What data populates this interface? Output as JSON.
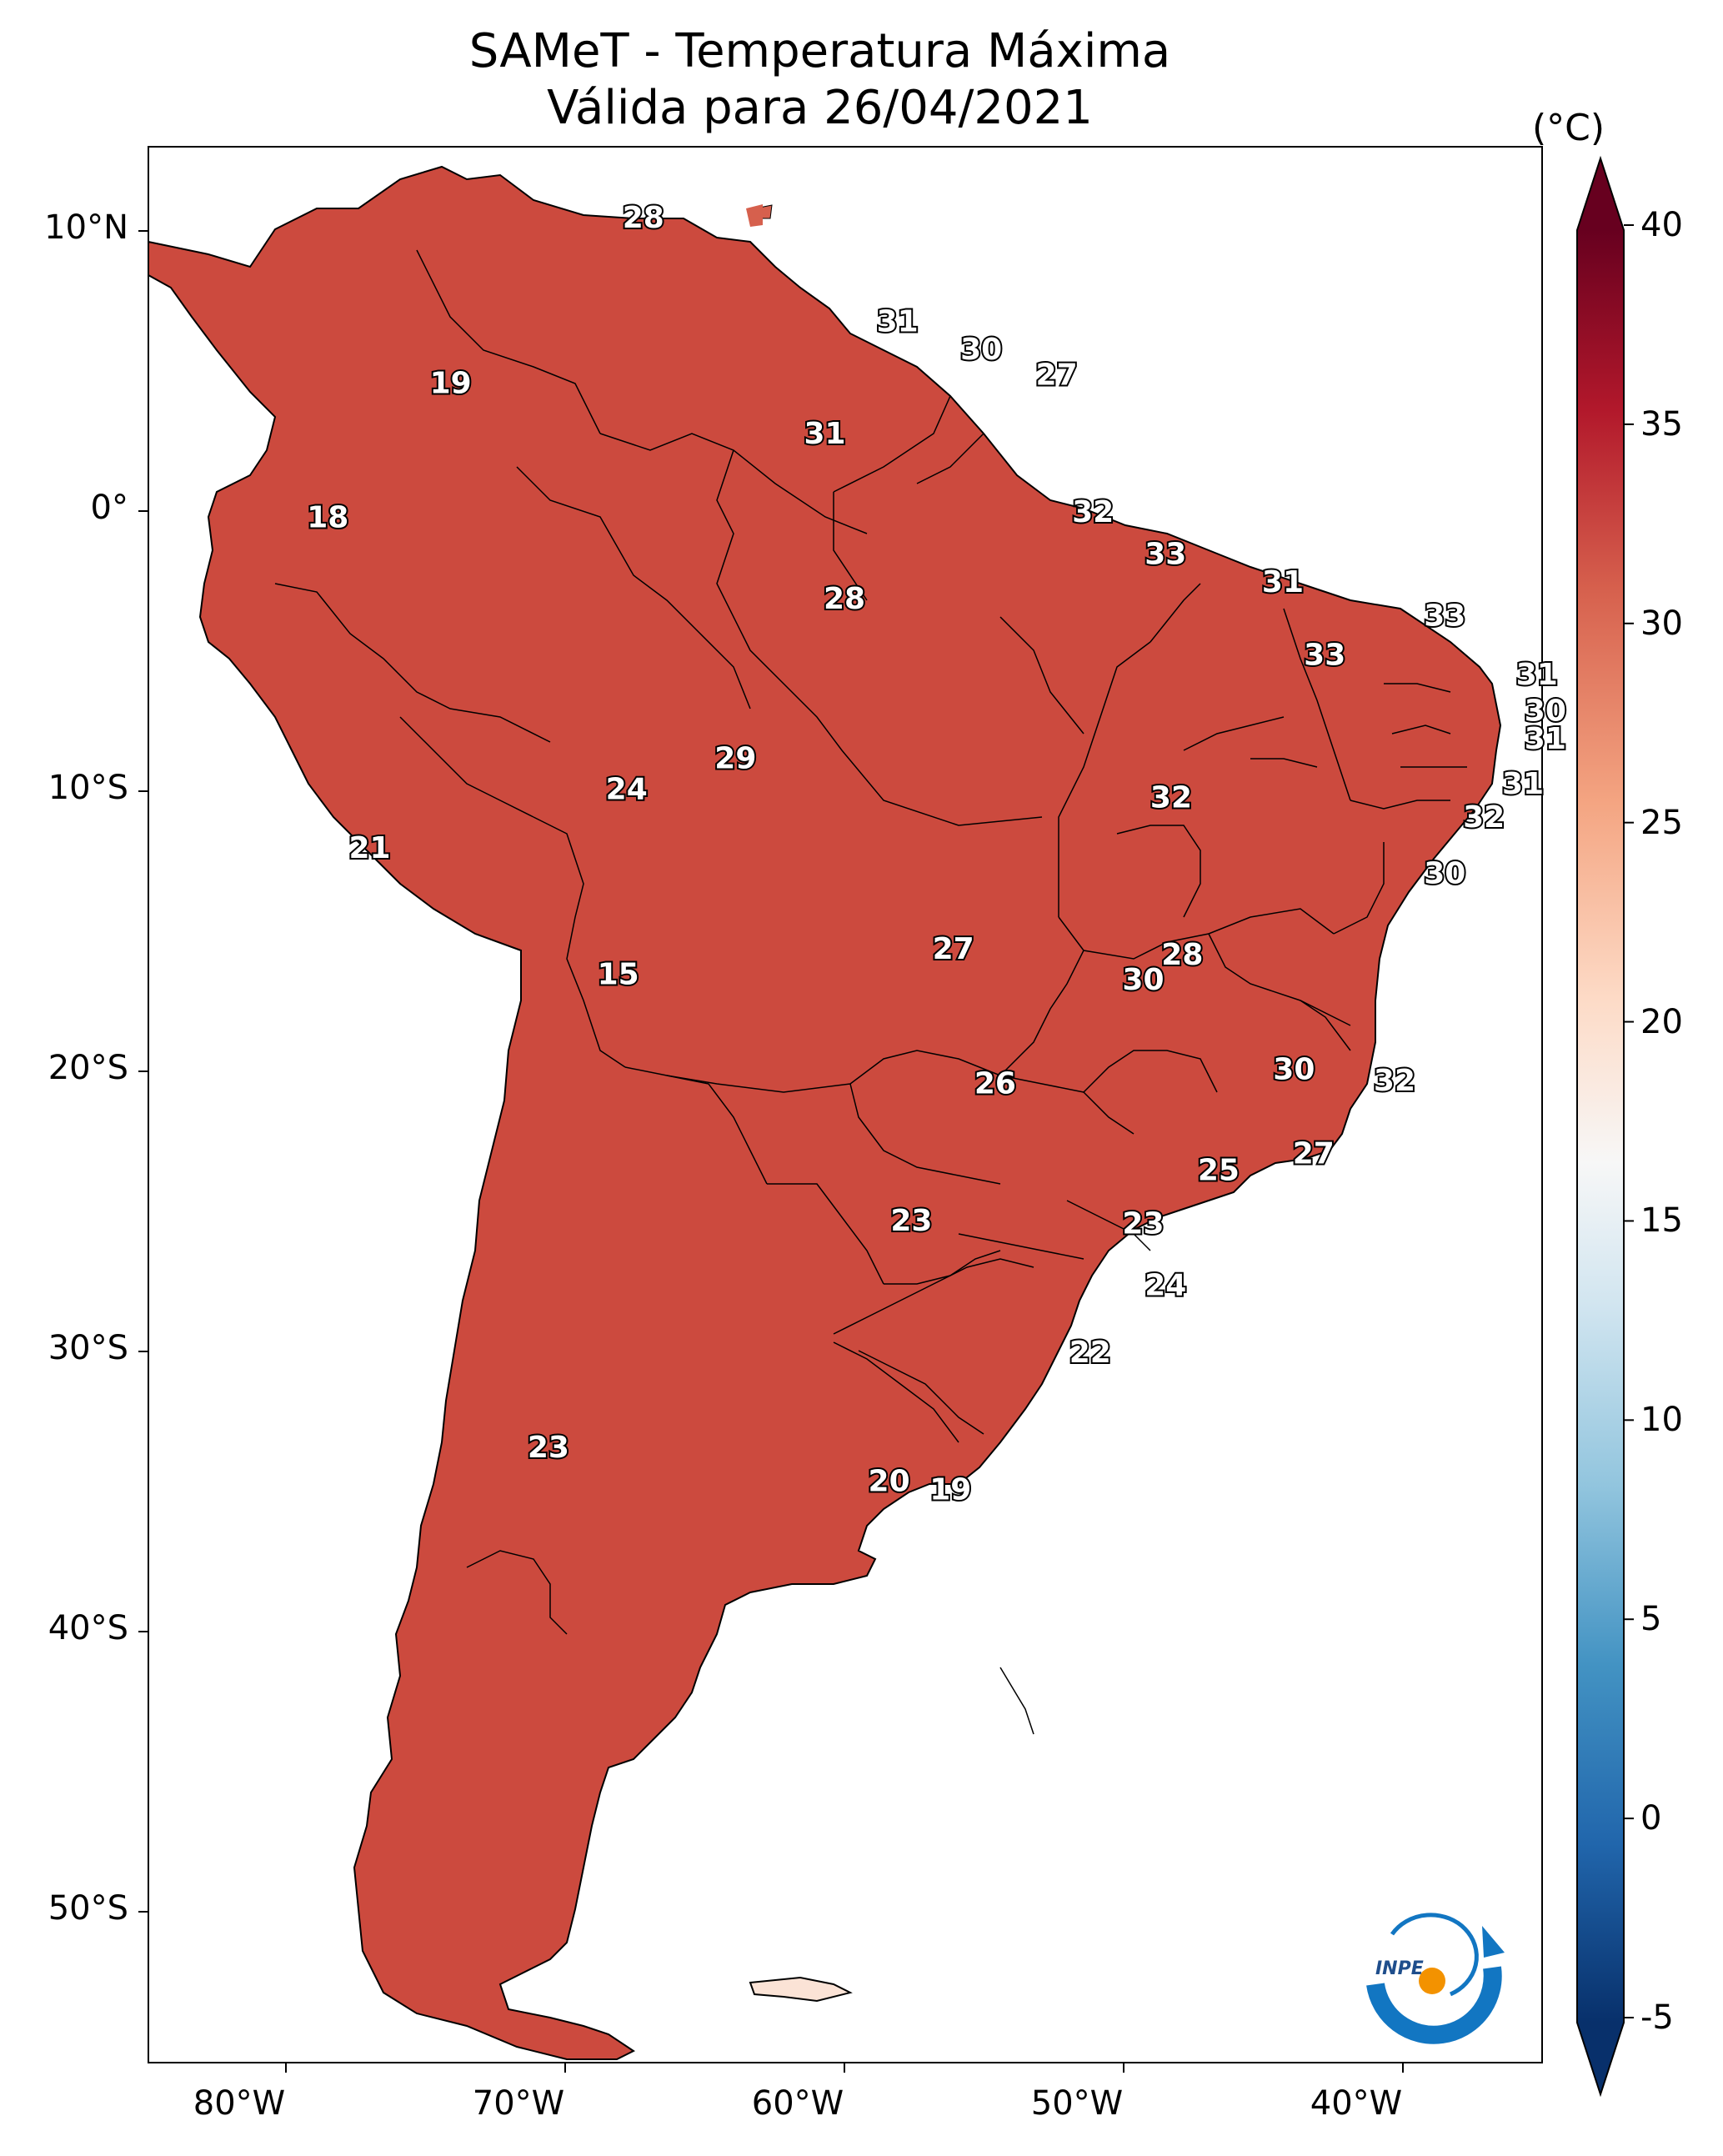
{
  "title": {
    "line1": "SAMeT - Temperatura Máxima",
    "line2": "Válida para 26/04/2021"
  },
  "colorbar": {
    "unit": "(°C)",
    "ticks": [
      "40",
      "35",
      "30",
      "25",
      "20",
      "15",
      "10",
      "5",
      "0",
      "-5"
    ],
    "min": -5,
    "max": 40,
    "colors": [
      "#08306b",
      "#2166ac",
      "#4393c3",
      "#92c5de",
      "#d1e5f0",
      "#f7f7f7",
      "#fddbc7",
      "#f4a582",
      "#d6604d",
      "#b2182b",
      "#67001f"
    ]
  },
  "axes": {
    "lat_labels": [
      "10°N",
      "0°",
      "10°S",
      "20°S",
      "30°S",
      "40°S",
      "50°S"
    ],
    "lon_labels": [
      "80°W",
      "70°W",
      "60°W",
      "50°W",
      "40°W"
    ]
  },
  "cities": [
    {
      "label": "28",
      "lon": -67.2,
      "lat": 10.5
    },
    {
      "label": "31",
      "lon": -58.1,
      "lat": 6.8
    },
    {
      "label": "30",
      "lon": -55.1,
      "lat": 5.8
    },
    {
      "label": "27",
      "lon": -52.4,
      "lat": 4.9
    },
    {
      "label": "19",
      "lon": -74.1,
      "lat": 4.6
    },
    {
      "label": "31",
      "lon": -60.7,
      "lat": 2.8
    },
    {
      "label": "18",
      "lon": -78.5,
      "lat": -0.2
    },
    {
      "label": "32",
      "lon": -51.1,
      "lat": 0.0
    },
    {
      "label": "33",
      "lon": -48.5,
      "lat": -1.5
    },
    {
      "label": "28",
      "lon": -60.0,
      "lat": -3.1
    },
    {
      "label": "31",
      "lon": -44.3,
      "lat": -2.5
    },
    {
      "label": "33",
      "lon": -38.5,
      "lat": -3.7
    },
    {
      "label": "33",
      "lon": -42.8,
      "lat": -5.1
    },
    {
      "label": "31",
      "lon": -35.2,
      "lat": -5.8
    },
    {
      "label": "30",
      "lon": -34.9,
      "lat": -7.1
    },
    {
      "label": "31",
      "lon": -34.9,
      "lat": -8.1
    },
    {
      "label": "29",
      "lon": -63.9,
      "lat": -8.8
    },
    {
      "label": "24",
      "lon": -67.8,
      "lat": -9.9
    },
    {
      "label": "31",
      "lon": -35.7,
      "lat": -9.7
    },
    {
      "label": "32",
      "lon": -48.3,
      "lat": -10.2
    },
    {
      "label": "32",
      "lon": -37.1,
      "lat": -10.9
    },
    {
      "label": "21",
      "lon": -77.0,
      "lat": -12.0
    },
    {
      "label": "30",
      "lon": -38.5,
      "lat": -12.9
    },
    {
      "label": "15",
      "lon": -68.1,
      "lat": -16.5
    },
    {
      "label": "27",
      "lon": -56.1,
      "lat": -15.6
    },
    {
      "label": "28",
      "lon": -47.9,
      "lat": -15.8
    },
    {
      "label": "30",
      "lon": -49.3,
      "lat": -16.7
    },
    {
      "label": "30",
      "lon": -43.9,
      "lat": -19.9
    },
    {
      "label": "32",
      "lon": -40.3,
      "lat": -20.3
    },
    {
      "label": "26",
      "lon": -54.6,
      "lat": -20.4
    },
    {
      "label": "27",
      "lon": -43.2,
      "lat": -22.9
    },
    {
      "label": "25",
      "lon": -46.6,
      "lat": -23.5
    },
    {
      "label": "23",
      "lon": -57.6,
      "lat": -25.3
    },
    {
      "label": "23",
      "lon": -49.3,
      "lat": -25.4
    },
    {
      "label": "24",
      "lon": -48.5,
      "lat": -27.6
    },
    {
      "label": "22",
      "lon": -51.2,
      "lat": -30.0
    },
    {
      "label": "23",
      "lon": -70.6,
      "lat": -33.4
    },
    {
      "label": "20",
      "lon": -58.4,
      "lat": -34.6
    },
    {
      "label": "19",
      "lon": -56.2,
      "lat": -34.9
    }
  ]
}
